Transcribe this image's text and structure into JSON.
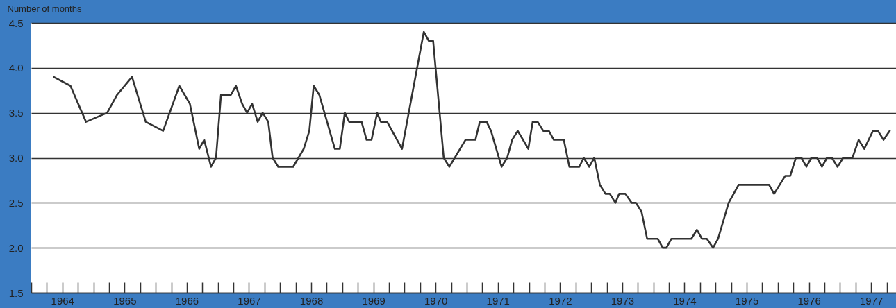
{
  "chart_data": {
    "type": "line",
    "ylabel": "Number of months",
    "color": "#333333",
    "grid": "y",
    "x": [
      1964.36,
      1964.63,
      1964.88,
      1965.22,
      1965.38,
      1965.62,
      1965.84,
      1966.12,
      1966.38,
      1966.55,
      1966.7,
      1966.78,
      1966.89,
      1966.97,
      1967.05,
      1967.21,
      1967.29,
      1967.39,
      1967.47,
      1967.55,
      1967.64,
      1967.72,
      1967.81,
      1967.88,
      1967.97,
      1968.21,
      1968.38,
      1968.47,
      1968.54,
      1968.63,
      1968.88,
      1968.96,
      1969.04,
      1969.11,
      1969.31,
      1969.39,
      1969.47,
      1969.56,
      1969.62,
      1969.72,
      1969.96,
      1970.31,
      1970.39,
      1970.46,
      1970.63,
      1970.72,
      1970.98,
      1971.14,
      1971.21,
      1971.32,
      1971.39,
      1971.56,
      1971.65,
      1971.73,
      1971.82,
      1971.99,
      1972.06,
      1972.14,
      1972.23,
      1972.32,
      1972.4,
      1972.56,
      1972.65,
      1972.81,
      1972.88,
      1972.97,
      1973.05,
      1973.14,
      1973.23,
      1973.3,
      1973.39,
      1973.45,
      1973.55,
      1973.65,
      1973.72,
      1973.81,
      1973.9,
      1974.07,
      1974.15,
      1974.21,
      1974.29,
      1974.61,
      1974.7,
      1974.78,
      1974.86,
      1974.96,
      1975.04,
      1975.21,
      1975.37,
      1975.86,
      1975.94,
      1976.12,
      1976.2,
      1976.29,
      1976.38,
      1976.46,
      1976.54,
      1976.63,
      1976.71,
      1976.79,
      1976.87,
      1976.96,
      1977.05,
      1977.2,
      1977.3,
      1977.39,
      1977.53,
      1977.61,
      1977.7,
      1977.8
    ],
    "values": [
      3.9,
      3.8,
      3.4,
      3.5,
      3.7,
      3.9,
      3.4,
      3.3,
      3.8,
      3.6,
      3.1,
      3.2,
      2.9,
      3.0,
      3.7,
      3.7,
      3.8,
      3.6,
      3.5,
      3.6,
      3.4,
      3.5,
      3.4,
      3.0,
      2.9,
      2.9,
      3.1,
      3.3,
      3.8,
      3.7,
      3.1,
      3.1,
      3.5,
      3.4,
      3.4,
      3.2,
      3.2,
      3.5,
      3.4,
      3.4,
      3.1,
      4.4,
      4.3,
      4.3,
      3.0,
      2.9,
      3.2,
      3.2,
      3.4,
      3.4,
      3.3,
      2.9,
      3.0,
      3.2,
      3.3,
      3.1,
      3.4,
      3.4,
      3.3,
      3.3,
      3.2,
      3.2,
      2.9,
      2.9,
      3.0,
      2.9,
      3.0,
      2.7,
      2.6,
      2.6,
      2.5,
      2.6,
      2.6,
      2.5,
      2.5,
      2.4,
      2.1,
      2.1,
      2.0,
      2.0,
      2.1,
      2.1,
      2.2,
      2.1,
      2.1,
      2.0,
      2.1,
      2.5,
      2.7,
      2.7,
      2.6,
      2.8,
      2.8,
      3.0,
      3.0,
      2.9,
      3.0,
      3.0,
      2.9,
      3.0,
      3.0,
      2.9,
      3.0,
      3.0,
      3.2,
      3.1,
      3.3,
      3.3,
      3.2,
      3.3
    ],
    "xlim": [
      1964,
      1977.9
    ],
    "ylim": [
      1.5,
      4.5
    ],
    "yticks": [
      1.5,
      {
        "value": 2,
        "label": "2.0"
      },
      2.5,
      {
        "value": 3,
        "label": "3.0"
      },
      3.5,
      {
        "value": 4,
        "label": "4.0"
      },
      4.5
    ],
    "xticks": [
      {
        "value": 1964,
        "label": null
      },
      {
        "value": 1964.25,
        "label": null
      },
      {
        "value": 1964.5,
        "label": "1964"
      },
      {
        "value": 1964.75,
        "label": null
      },
      {
        "value": 1965,
        "label": null
      },
      {
        "value": 1965.25,
        "label": null
      },
      {
        "value": 1965.5,
        "label": "1965"
      },
      {
        "value": 1965.75,
        "label": null
      },
      {
        "value": 1966,
        "label": null
      },
      {
        "value": 1966.25,
        "label": null
      },
      {
        "value": 1966.5,
        "label": "1966"
      },
      {
        "value": 1966.75,
        "label": null
      },
      {
        "value": 1967,
        "label": null
      },
      {
        "value": 1967.25,
        "label": null
      },
      {
        "value": 1967.5,
        "label": "1967"
      },
      {
        "value": 1967.75,
        "label": null
      },
      {
        "value": 1968,
        "label": null
      },
      {
        "value": 1968.25,
        "label": null
      },
      {
        "value": 1968.5,
        "label": "1968"
      },
      {
        "value": 1968.75,
        "label": null
      },
      {
        "value": 1969,
        "label": null
      },
      {
        "value": 1969.25,
        "label": null
      },
      {
        "value": 1969.5,
        "label": "1969"
      },
      {
        "value": 1969.75,
        "label": null
      },
      {
        "value": 1970,
        "label": null
      },
      {
        "value": 1970.25,
        "label": null
      },
      {
        "value": 1970.5,
        "label": "1970"
      },
      {
        "value": 1970.75,
        "label": null
      },
      {
        "value": 1971,
        "label": null
      },
      {
        "value": 1971.25,
        "label": null
      },
      {
        "value": 1971.5,
        "label": "1971"
      },
      {
        "value": 1971.75,
        "label": null
      },
      {
        "value": 1972,
        "label": null
      },
      {
        "value": 1972.25,
        "label": null
      },
      {
        "value": 1972.5,
        "label": "1972"
      },
      {
        "value": 1972.75,
        "label": null
      },
      {
        "value": 1973,
        "label": null
      },
      {
        "value": 1973.25,
        "label": null
      },
      {
        "value": 1973.5,
        "label": "1973"
      },
      {
        "value": 1973.75,
        "label": null
      },
      {
        "value": 1974,
        "label": null
      },
      {
        "value": 1974.25,
        "label": null
      },
      {
        "value": 1974.5,
        "label": "1974"
      },
      {
        "value": 1974.75,
        "label": null
      },
      {
        "value": 1975,
        "label": null
      },
      {
        "value": 1975.25,
        "label": null
      },
      {
        "value": 1975.5,
        "label": "1975"
      },
      {
        "value": 1975.75,
        "label": null
      },
      {
        "value": 1976,
        "label": null
      },
      {
        "value": 1976.25,
        "label": null
      },
      {
        "value": 1976.5,
        "label": "1976"
      },
      {
        "value": 1976.75,
        "label": null
      },
      {
        "value": 1977,
        "label": null
      },
      {
        "value": 1977.25,
        "label": null
      },
      {
        "value": 1977.5,
        "label": "1977"
      },
      {
        "value": 1977.75,
        "label": null
      }
    ]
  }
}
